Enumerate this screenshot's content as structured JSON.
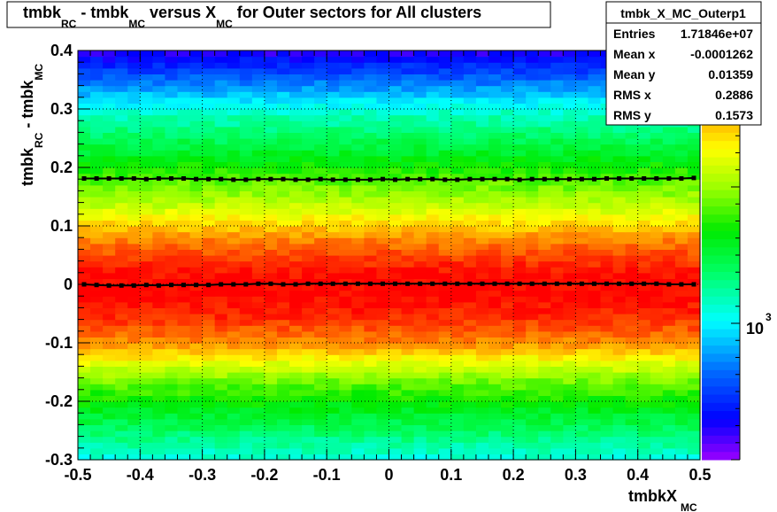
{
  "chart_data": {
    "type": "heatmap",
    "title": {
      "p1": "tmbk",
      "s1": "RC",
      "p2": " - tmbk",
      "s2": "MC",
      "p3": " versus X",
      "s3": "MC",
      "p4": " for Outer sectors for All clusters"
    },
    "xlabel": {
      "main": "tmbkX",
      "sub": "MC"
    },
    "ylabel": {
      "p1": "tmbk",
      "s1": "RC",
      "p2": " - tmbk",
      "s2": "MC"
    },
    "xlim": [
      -0.5,
      0.5
    ],
    "ylim": [
      -0.3,
      0.4
    ],
    "x_ticks": [
      "-0.5",
      "-0.4",
      "-0.3",
      "-0.2",
      "-0.1",
      "0",
      "0.1",
      "0.2",
      "0.3",
      "0.4",
      "0.5"
    ],
    "y_ticks": [
      "-0.3",
      "-0.2",
      "-0.1",
      "0",
      "0.1",
      "0.2",
      "0.3",
      "0.4"
    ],
    "x_tick_values": [
      -0.5,
      -0.4,
      -0.3,
      -0.2,
      -0.1,
      0,
      0.1,
      0.2,
      0.3,
      0.4,
      0.5
    ],
    "y_tick_values": [
      -0.3,
      -0.2,
      -0.1,
      0,
      0.1,
      0.2,
      0.3,
      0.4
    ],
    "grid": true,
    "color_scale": "log",
    "colorbar_label": {
      "base": "10",
      "exp": "3"
    },
    "colorbar_label_value": 1000,
    "density_profile": {
      "y_centers": [
        -0.295,
        -0.285,
        -0.275,
        -0.265,
        -0.255,
        -0.245,
        -0.235,
        -0.225,
        -0.215,
        -0.205,
        -0.195,
        -0.185,
        -0.175,
        -0.165,
        -0.155,
        -0.145,
        -0.135,
        -0.125,
        -0.115,
        -0.105,
        -0.095,
        -0.085,
        -0.075,
        -0.065,
        -0.055,
        -0.045,
        -0.035,
        -0.025,
        -0.015,
        -0.005,
        0.005,
        0.015,
        0.025,
        0.035,
        0.045,
        0.055,
        0.065,
        0.075,
        0.085,
        0.095,
        0.105,
        0.115,
        0.125,
        0.135,
        0.145,
        0.155,
        0.165,
        0.175,
        0.185,
        0.195,
        0.205,
        0.215,
        0.225,
        0.235,
        0.245,
        0.255,
        0.265,
        0.275,
        0.285,
        0.295,
        0.305,
        0.315,
        0.325,
        0.335,
        0.345,
        0.355,
        0.365,
        0.375,
        0.385,
        0.395
      ],
      "levels": [
        0.37,
        0.39,
        0.41,
        0.43,
        0.45,
        0.47,
        0.49,
        0.51,
        0.53,
        0.55,
        0.57,
        0.59,
        0.61,
        0.64,
        0.67,
        0.7,
        0.73,
        0.77,
        0.81,
        0.85,
        0.88,
        0.9,
        0.92,
        0.94,
        0.96,
        0.97,
        0.98,
        0.99,
        1.0,
        1.0,
        1.0,
        0.99,
        0.98,
        0.96,
        0.94,
        0.92,
        0.9,
        0.88,
        0.85,
        0.82,
        0.79,
        0.76,
        0.73,
        0.7,
        0.68,
        0.66,
        0.64,
        0.62,
        0.6,
        0.58,
        0.56,
        0.54,
        0.52,
        0.5,
        0.48,
        0.46,
        0.44,
        0.42,
        0.4,
        0.38,
        0.35,
        0.32,
        0.29,
        0.26,
        0.23,
        0.2,
        0.17,
        0.14,
        0.11,
        0.08
      ],
      "x_bins": 50
    },
    "series": [
      {
        "kind": "mean-profile",
        "x": [
          -0.49,
          -0.47,
          -0.45,
          -0.43,
          -0.41,
          -0.39,
          -0.37,
          -0.35,
          -0.33,
          -0.31,
          -0.29,
          -0.27,
          -0.25,
          -0.23,
          -0.21,
          -0.19,
          -0.17,
          -0.15,
          -0.13,
          -0.11,
          -0.09,
          -0.07,
          -0.05,
          -0.03,
          -0.01,
          0.01,
          0.03,
          0.05,
          0.07,
          0.09,
          0.11,
          0.13,
          0.15,
          0.17,
          0.19,
          0.21,
          0.23,
          0.25,
          0.27,
          0.29,
          0.31,
          0.33,
          0.35,
          0.37,
          0.39,
          0.41,
          0.43,
          0.45,
          0.47,
          0.49
        ],
        "y": [
          0.0,
          -0.001,
          -0.002,
          -0.002,
          -0.002,
          -0.001,
          -0.002,
          -0.001,
          -0.001,
          -0.001,
          -0.001,
          0.0,
          0.0,
          0.0,
          0.001,
          0.001,
          0.0,
          0.0,
          0.001,
          0.001,
          0.001,
          0.001,
          0.001,
          0.001,
          0.001,
          0.001,
          0.001,
          0.001,
          0.001,
          0.001,
          0.001,
          0.001,
          0.001,
          0.001,
          0.001,
          0.001,
          0.001,
          0.001,
          0.001,
          0.001,
          0.001,
          0.001,
          0.001,
          0.001,
          0.001,
          0.001,
          0.001,
          0.0,
          0.0,
          0.0
        ]
      },
      {
        "kind": "rms-profile",
        "x": [
          -0.49,
          -0.47,
          -0.45,
          -0.43,
          -0.41,
          -0.39,
          -0.37,
          -0.35,
          -0.33,
          -0.31,
          -0.29,
          -0.27,
          -0.25,
          -0.23,
          -0.21,
          -0.19,
          -0.17,
          -0.15,
          -0.13,
          -0.11,
          -0.09,
          -0.07,
          -0.05,
          -0.03,
          -0.01,
          0.01,
          0.03,
          0.05,
          0.07,
          0.09,
          0.11,
          0.13,
          0.15,
          0.17,
          0.19,
          0.21,
          0.23,
          0.25,
          0.27,
          0.29,
          0.31,
          0.33,
          0.35,
          0.37,
          0.39,
          0.41,
          0.43,
          0.45,
          0.47,
          0.49
        ],
        "y": [
          0.181,
          0.181,
          0.181,
          0.181,
          0.181,
          0.18,
          0.181,
          0.181,
          0.181,
          0.18,
          0.18,
          0.18,
          0.179,
          0.179,
          0.18,
          0.18,
          0.18,
          0.179,
          0.179,
          0.18,
          0.179,
          0.179,
          0.179,
          0.179,
          0.18,
          0.179,
          0.18,
          0.18,
          0.18,
          0.179,
          0.179,
          0.18,
          0.18,
          0.18,
          0.18,
          0.179,
          0.18,
          0.18,
          0.18,
          0.18,
          0.18,
          0.18,
          0.181,
          0.181,
          0.181,
          0.181,
          0.181,
          0.181,
          0.181,
          0.182
        ]
      }
    ],
    "stats_box": {
      "title": "tmbk_X_MC_Outerp1",
      "rows": [
        {
          "label": "Entries",
          "value": "1.71846e+07"
        },
        {
          "label": "Mean x",
          "value": "-0.0001262"
        },
        {
          "label": "Mean y",
          "value": "0.01359"
        },
        {
          "label": "RMS x",
          "value": "0.2886"
        },
        {
          "label": "RMS y",
          "value": "0.1573"
        }
      ]
    }
  }
}
